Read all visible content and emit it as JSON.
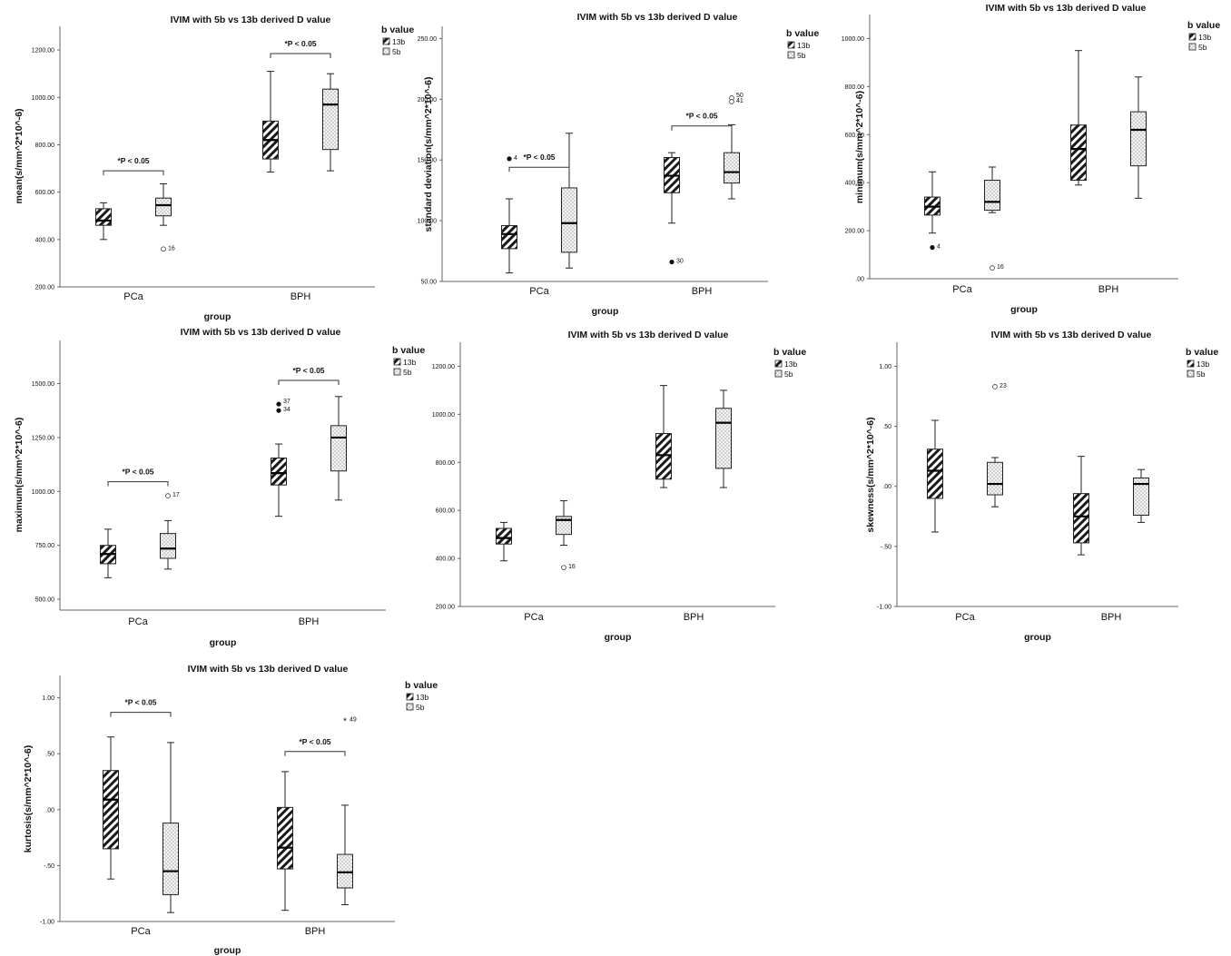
{
  "figure": "IVIM with 5b vs 13b derived D value box plots",
  "chart_data": [
    {
      "type": "box",
      "title": "IVIM with 5b vs 13b derived D value",
      "xlabel": "group",
      "ylabel": "mean(s/mm^2*10^-6)",
      "ylim": [
        200,
        1300
      ],
      "yticks": [
        200,
        400,
        600,
        800,
        1000,
        1200
      ],
      "ytick_labels": [
        "200.00",
        "400.00",
        "600.00",
        "800.00",
        "1000.00",
        "1200.00"
      ],
      "categories": [
        "PCa",
        "BPH"
      ],
      "legend_title": "b value",
      "legend": [
        "13b",
        "5b"
      ],
      "boxes": [
        {
          "group": "PCa",
          "series": "13b",
          "min": 400,
          "q1": 460,
          "median": 480,
          "q3": 530,
          "max": 555,
          "outliers": []
        },
        {
          "group": "PCa",
          "series": "5b",
          "min": 460,
          "q1": 500,
          "median": 545,
          "q3": 575,
          "max": 635,
          "outliers": [
            {
              "value": 360,
              "label": "16",
              "marker": "circle"
            }
          ]
        },
        {
          "group": "BPH",
          "series": "13b",
          "min": 685,
          "q1": 740,
          "median": 820,
          "q3": 900,
          "max": 1110,
          "outliers": []
        },
        {
          "group": "BPH",
          "series": "5b",
          "min": 690,
          "q1": 780,
          "median": 970,
          "q3": 1035,
          "max": 1100,
          "outliers": []
        }
      ],
      "annotations": [
        {
          "group": "PCa",
          "label": "*P < 0.05",
          "y": 690
        },
        {
          "group": "BPH",
          "label": "*P < 0.05",
          "y": 1185
        }
      ]
    },
    {
      "type": "box",
      "title": "IVIM with 5b vs 13b derived D value",
      "xlabel": "group",
      "ylabel": "standard deviation(s/mm^2*10^-6)",
      "ylim": [
        50,
        260
      ],
      "yticks": [
        50,
        100,
        150,
        200,
        250
      ],
      "ytick_labels": [
        "50.00",
        "100.00",
        "150.00",
        "200.00",
        "250.00"
      ],
      "categories": [
        "PCa",
        "BPH"
      ],
      "legend_title": "b value",
      "legend": [
        "13b",
        "5b"
      ],
      "boxes": [
        {
          "group": "PCa",
          "series": "13b",
          "min": 57,
          "q1": 77,
          "median": 89,
          "q3": 96,
          "max": 118,
          "outliers": [
            {
              "value": 151,
              "label": "4",
              "marker": "dot"
            }
          ]
        },
        {
          "group": "PCa",
          "series": "5b",
          "min": 61,
          "q1": 74,
          "median": 98,
          "q3": 127,
          "max": 172,
          "outliers": []
        },
        {
          "group": "BPH",
          "series": "13b",
          "min": 98,
          "q1": 123,
          "median": 137,
          "q3": 152,
          "max": 156,
          "outliers": [
            {
              "value": 66,
              "label": "30",
              "marker": "dot"
            }
          ]
        },
        {
          "group": "BPH",
          "series": "5b",
          "min": 118,
          "q1": 131,
          "median": 140,
          "q3": 156,
          "max": 179,
          "outliers": [
            {
              "value": 201,
              "label": "50",
              "marker": "circle"
            },
            {
              "value": 198,
              "label": "41",
              "marker": "circle"
            }
          ]
        }
      ],
      "annotations": [
        {
          "group": "PCa",
          "label": "*P < 0.05",
          "y": 144
        },
        {
          "group": "BPH",
          "label": "*P < 0.05",
          "y": 178
        }
      ]
    },
    {
      "type": "box",
      "title": "IVIM with 5b vs 13b derived D value",
      "xlabel": "group",
      "ylabel": "minimum(s/mm^2*10^-6)",
      "ylim": [
        0,
        1100
      ],
      "yticks": [
        0,
        200,
        400,
        600,
        800,
        1000
      ],
      "ytick_labels": [
        ".00",
        "200.00",
        "400.00",
        "600.00",
        "800.00",
        "1000.00"
      ],
      "categories": [
        "PCa",
        "BPH"
      ],
      "legend_title": "b value",
      "legend": [
        "13b",
        "5b"
      ],
      "boxes": [
        {
          "group": "PCa",
          "series": "13b",
          "min": 190,
          "q1": 265,
          "median": 300,
          "q3": 340,
          "max": 445,
          "outliers": [
            {
              "value": 130,
              "label": "4",
              "marker": "dot"
            }
          ]
        },
        {
          "group": "PCa",
          "series": "5b",
          "min": 275,
          "q1": 285,
          "median": 320,
          "q3": 410,
          "max": 465,
          "outliers": [
            {
              "value": 45,
              "label": "16",
              "marker": "circle"
            }
          ]
        },
        {
          "group": "BPH",
          "series": "13b",
          "min": 390,
          "q1": 410,
          "median": 540,
          "q3": 640,
          "max": 950,
          "outliers": []
        },
        {
          "group": "BPH",
          "series": "5b",
          "min": 335,
          "q1": 470,
          "median": 620,
          "q3": 695,
          "max": 840,
          "outliers": []
        }
      ],
      "annotations": []
    },
    {
      "type": "box",
      "title": "IVIM with 5b vs 13b derived D value",
      "xlabel": "group",
      "ylabel": "maximum(s/mm^2*10^-6)",
      "ylim": [
        450,
        1700
      ],
      "yticks": [
        500,
        750,
        1000,
        1250,
        1500
      ],
      "ytick_labels": [
        "500.00",
        "750.00",
        "1000.00",
        "1250.00",
        "1500.00"
      ],
      "categories": [
        "PCa",
        "BPH"
      ],
      "legend_title": "b value",
      "legend": [
        "13b",
        "5b"
      ],
      "boxes": [
        {
          "group": "PCa",
          "series": "13b",
          "min": 600,
          "q1": 665,
          "median": 710,
          "q3": 750,
          "max": 825,
          "outliers": []
        },
        {
          "group": "PCa",
          "series": "5b",
          "min": 640,
          "q1": 690,
          "median": 735,
          "q3": 805,
          "max": 865,
          "outliers": [
            {
              "value": 980,
              "label": "17",
              "marker": "circle"
            }
          ]
        },
        {
          "group": "BPH",
          "series": "13b",
          "min": 885,
          "q1": 1030,
          "median": 1085,
          "q3": 1155,
          "max": 1220,
          "outliers": [
            {
              "value": 1405,
              "label": "37",
              "marker": "dot"
            },
            {
              "value": 1375,
              "label": "34",
              "marker": "dot"
            }
          ]
        },
        {
          "group": "BPH",
          "series": "5b",
          "min": 960,
          "q1": 1095,
          "median": 1250,
          "q3": 1305,
          "max": 1440,
          "outliers": []
        }
      ],
      "annotations": [
        {
          "group": "PCa",
          "label": "*P < 0.05",
          "y": 1045
        },
        {
          "group": "BPH",
          "label": "*P < 0.05",
          "y": 1515
        }
      ]
    },
    {
      "type": "box",
      "title": "IVIM with 5b vs 13b derived D value",
      "xlabel": "group",
      "ylabel": "",
      "ylim": [
        200,
        1300
      ],
      "yticks": [
        200,
        400,
        600,
        800,
        1000,
        1200
      ],
      "ytick_labels": [
        "200.00",
        "400.00",
        "600.00",
        "800.00",
        "1000.00",
        "1200.00"
      ],
      "categories": [
        "PCa",
        "BPH"
      ],
      "legend_title": "b value",
      "legend": [
        "13b",
        "5b"
      ],
      "boxes": [
        {
          "group": "PCa",
          "series": "13b",
          "min": 390,
          "q1": 460,
          "median": 485,
          "q3": 525,
          "max": 550,
          "outliers": []
        },
        {
          "group": "PCa",
          "series": "5b",
          "min": 455,
          "q1": 500,
          "median": 560,
          "q3": 575,
          "max": 640,
          "outliers": [
            {
              "value": 362,
              "label": "16",
              "marker": "circle"
            }
          ]
        },
        {
          "group": "BPH",
          "series": "13b",
          "min": 695,
          "q1": 730,
          "median": 830,
          "q3": 920,
          "max": 1120,
          "outliers": []
        },
        {
          "group": "BPH",
          "series": "5b",
          "min": 695,
          "q1": 775,
          "median": 965,
          "q3": 1025,
          "max": 1100,
          "outliers": []
        }
      ],
      "annotations": []
    },
    {
      "type": "box",
      "title": "IVIM with 5b vs 13b derived D value",
      "xlabel": "group",
      "ylabel": "skewness(s/mm^2*10^-6)",
      "ylim": [
        -1.0,
        1.2
      ],
      "yticks": [
        -1.0,
        -0.5,
        0.0,
        0.5,
        1.0
      ],
      "ytick_labels": [
        "-1.00",
        "-.50",
        ".00",
        ".50",
        "1.00"
      ],
      "categories": [
        "PCa",
        "BPH"
      ],
      "legend_title": "b value",
      "legend": [
        "13b",
        "5b"
      ],
      "boxes": [
        {
          "group": "PCa",
          "series": "13b",
          "min": -0.38,
          "q1": -0.1,
          "median": 0.13,
          "q3": 0.31,
          "max": 0.55,
          "outliers": []
        },
        {
          "group": "PCa",
          "series": "5b",
          "min": -0.17,
          "q1": -0.07,
          "median": 0.02,
          "q3": 0.2,
          "max": 0.24,
          "outliers": [
            {
              "value": 0.83,
              "label": "23",
              "marker": "circle"
            }
          ]
        },
        {
          "group": "BPH",
          "series": "13b",
          "min": -0.57,
          "q1": -0.47,
          "median": -0.25,
          "q3": -0.06,
          "max": 0.25,
          "outliers": []
        },
        {
          "group": "BPH",
          "series": "5b",
          "min": -0.3,
          "q1": -0.24,
          "median": 0.02,
          "q3": 0.07,
          "max": 0.14,
          "outliers": []
        }
      ],
      "annotations": []
    },
    {
      "type": "box",
      "title": "IVIM with 5b vs 13b derived D value",
      "xlabel": "group",
      "ylabel": "kurtosis(s/mm^2*10^-6)",
      "ylim": [
        -1.0,
        1.2
      ],
      "yticks": [
        -1.0,
        -0.5,
        0.0,
        0.5,
        1.0
      ],
      "ytick_labels": [
        "-1.00",
        "-.50",
        ".00",
        ".50",
        "1.00"
      ],
      "categories": [
        "PCa",
        "BPH"
      ],
      "legend_title": "b value",
      "legend": [
        "13b",
        "5b"
      ],
      "boxes": [
        {
          "group": "PCa",
          "series": "13b",
          "min": -0.62,
          "q1": -0.35,
          "median": 0.09,
          "q3": 0.35,
          "max": 0.65,
          "outliers": []
        },
        {
          "group": "PCa",
          "series": "5b",
          "min": -0.92,
          "q1": -0.76,
          "median": -0.55,
          "q3": -0.12,
          "max": 0.6,
          "outliers": []
        },
        {
          "group": "BPH",
          "series": "13b",
          "min": -0.9,
          "q1": -0.53,
          "median": -0.34,
          "q3": 0.02,
          "max": 0.34,
          "outliers": []
        },
        {
          "group": "BPH",
          "series": "5b",
          "min": -0.85,
          "q1": -0.7,
          "median": -0.56,
          "q3": -0.4,
          "max": 0.04,
          "outliers": [
            {
              "value": 0.8,
              "label": "49",
              "marker": "star"
            }
          ]
        }
      ],
      "annotations": [
        {
          "group": "PCa",
          "label": "*P < 0.05",
          "y": 0.87
        },
        {
          "group": "BPH",
          "label": "*P < 0.05",
          "y": 0.52
        }
      ]
    }
  ]
}
